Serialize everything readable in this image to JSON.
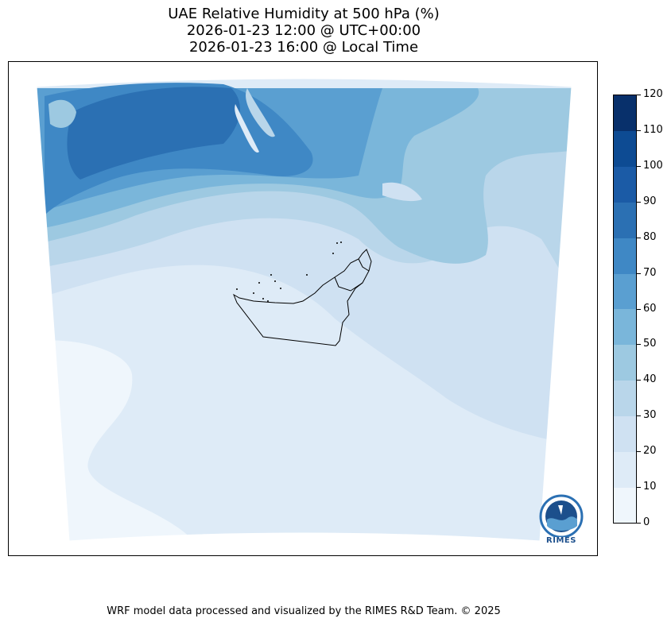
{
  "title": {
    "line1": "UAE Relative Humidity at 500 hPa (%)",
    "line2": "2026-01-23 12:00 @ UTC+00:00",
    "line3": "2026-01-23 16:00 @ Local Time"
  },
  "colorbar": {
    "ticks": [
      "0",
      "10",
      "20",
      "30",
      "40",
      "50",
      "60",
      "70",
      "80",
      "90",
      "100",
      "110",
      "120"
    ],
    "colors": [
      "#eff6fc",
      "#deebf7",
      "#cfe1f2",
      "#b9d6ea",
      "#9dc9e1",
      "#7ab6da",
      "#5a9fd1",
      "#3f88c5",
      "#2b70b3",
      "#1b5ba6",
      "#0d4b93",
      "#08306b"
    ]
  },
  "logo": {
    "text": "RIMES"
  },
  "footer": "WRF model data processed and visualized by the RIMES R&D Team. © 2025"
}
